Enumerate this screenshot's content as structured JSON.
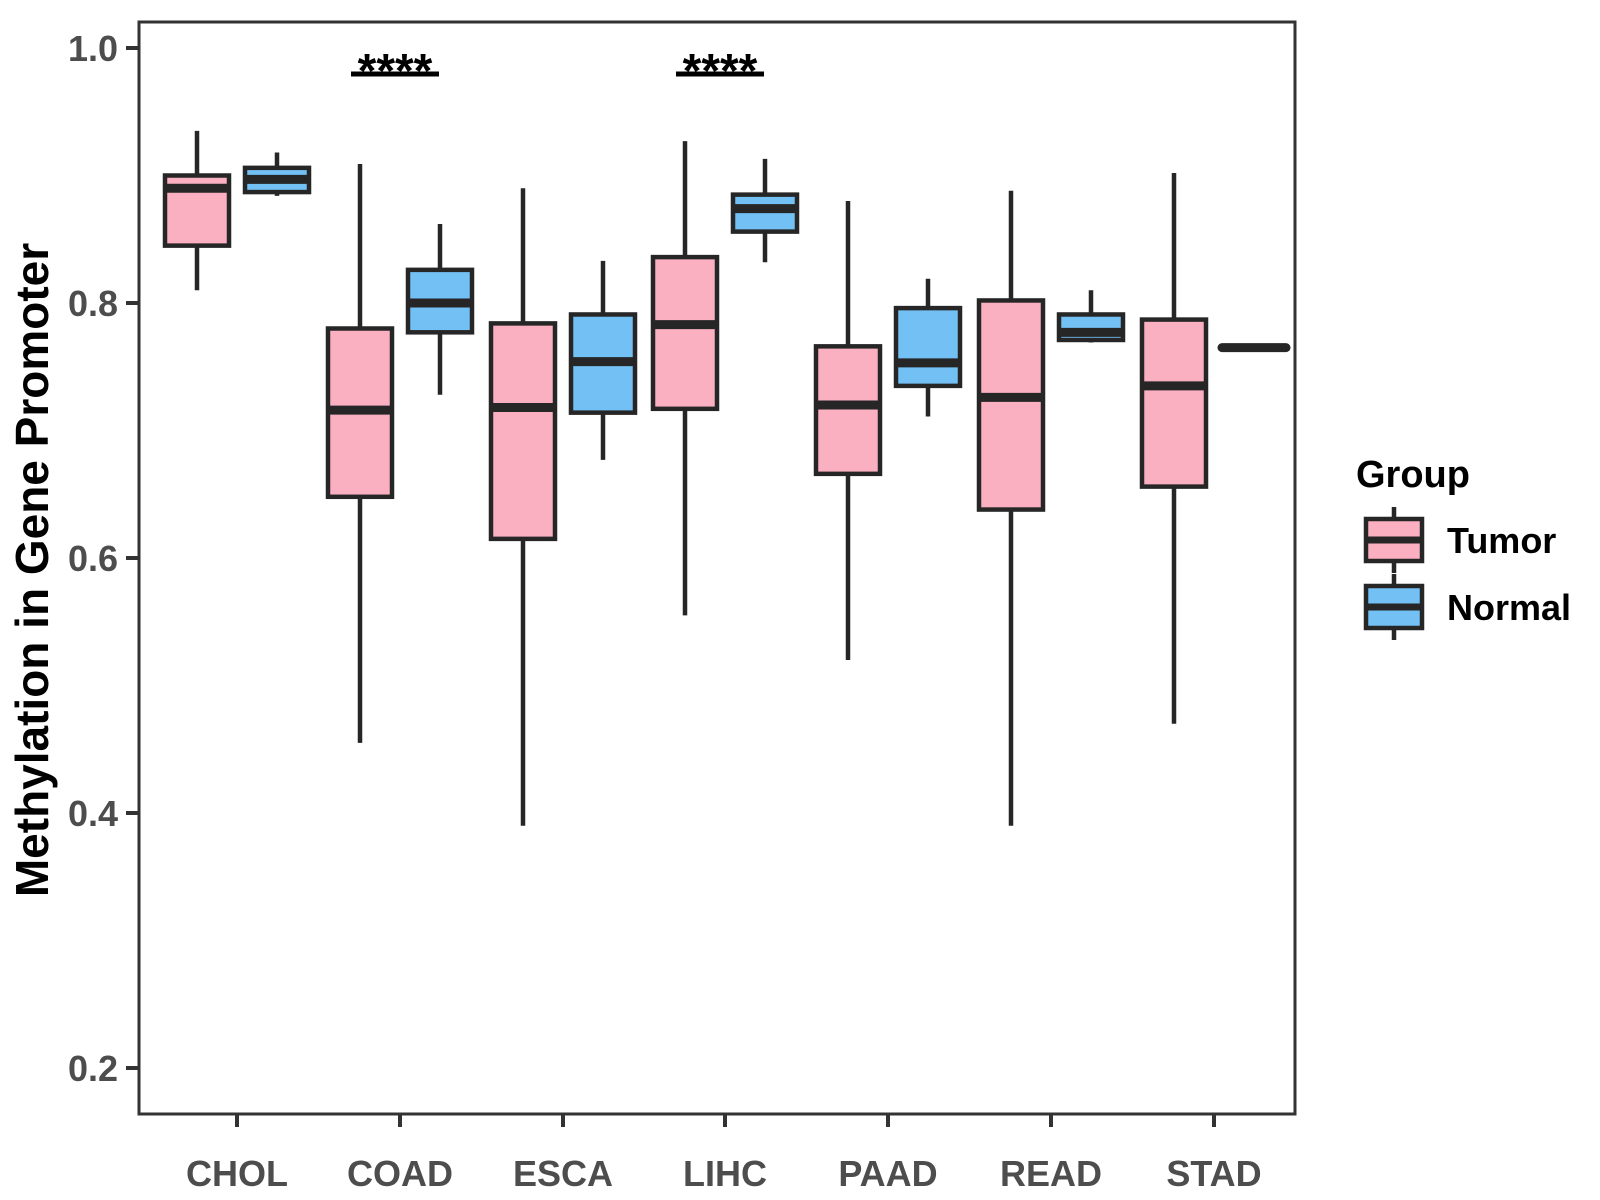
{
  "chart_data": {
    "type": "boxplot",
    "title": "",
    "xlabel": "",
    "ylabel": "Methylation in Gene Promoter",
    "ylim": [
      0.16,
      1.02
    ],
    "yticks": [
      1.0,
      0.8,
      0.6,
      0.4,
      0.2
    ],
    "ytick_labels": [
      "1.0",
      "0.8",
      "0.6",
      "0.4",
      "0.2"
    ],
    "categories": [
      "CHOL",
      "COAD",
      "ESCA",
      "LIHC",
      "PAAD",
      "READ",
      "STAD"
    ],
    "grid": false,
    "legend": {
      "title": "Group",
      "position": "right",
      "entries": [
        "Tumor",
        "Normal"
      ]
    },
    "colors": {
      "tumor_fill": "#FAB0C1",
      "normal_fill": "#73C0F5",
      "line": "#262626",
      "panel_border": "#333333",
      "axis_text": "#4D4D4D",
      "title_text": "#000000"
    },
    "series": [
      {
        "name": "Tumor",
        "fill": "#FAB0C1",
        "boxes": [
          {
            "category": "CHOL",
            "min": 0.81,
            "q1": 0.845,
            "median": 0.89,
            "q3": 0.9,
            "max": 0.935
          },
          {
            "category": "COAD",
            "min": 0.455,
            "q1": 0.648,
            "median": 0.716,
            "q3": 0.78,
            "max": 0.909
          },
          {
            "category": "ESCA",
            "min": 0.39,
            "q1": 0.615,
            "median": 0.718,
            "q3": 0.784,
            "max": 0.89
          },
          {
            "category": "LIHC",
            "min": 0.555,
            "q1": 0.717,
            "median": 0.783,
            "q3": 0.836,
            "max": 0.927
          },
          {
            "category": "PAAD",
            "min": 0.52,
            "q1": 0.666,
            "median": 0.72,
            "q3": 0.766,
            "max": 0.88
          },
          {
            "category": "READ",
            "min": 0.39,
            "q1": 0.638,
            "median": 0.726,
            "q3": 0.802,
            "max": 0.888
          },
          {
            "category": "STAD",
            "min": 0.47,
            "q1": 0.656,
            "median": 0.735,
            "q3": 0.787,
            "max": 0.902
          }
        ]
      },
      {
        "name": "Normal",
        "fill": "#73C0F5",
        "boxes": [
          {
            "category": "CHOL",
            "min": 0.884,
            "q1": 0.887,
            "median": 0.897,
            "q3": 0.906,
            "max": 0.918
          },
          {
            "category": "COAD",
            "min": 0.728,
            "q1": 0.777,
            "median": 0.8,
            "q3": 0.826,
            "max": 0.862
          },
          {
            "category": "ESCA",
            "min": 0.677,
            "q1": 0.714,
            "median": 0.754,
            "q3": 0.791,
            "max": 0.833
          },
          {
            "category": "LIHC",
            "min": 0.832,
            "q1": 0.856,
            "median": 0.874,
            "q3": 0.885,
            "max": 0.913
          },
          {
            "category": "PAAD",
            "min": 0.711,
            "q1": 0.735,
            "median": 0.753,
            "q3": 0.796,
            "max": 0.819
          },
          {
            "category": "READ",
            "min": 0.769,
            "q1": 0.771,
            "median": 0.777,
            "q3": 0.791,
            "max": 0.81
          },
          {
            "category": "STAD",
            "min": 0.765,
            "q1": 0.765,
            "median": 0.765,
            "q3": 0.765,
            "max": 0.765
          }
        ]
      },
      {}
    ],
    "annotations": [
      {
        "category": "COAD",
        "label": "****",
        "type": "significance"
      },
      {
        "category": "LIHC",
        "label": "****",
        "type": "significance"
      }
    ]
  }
}
